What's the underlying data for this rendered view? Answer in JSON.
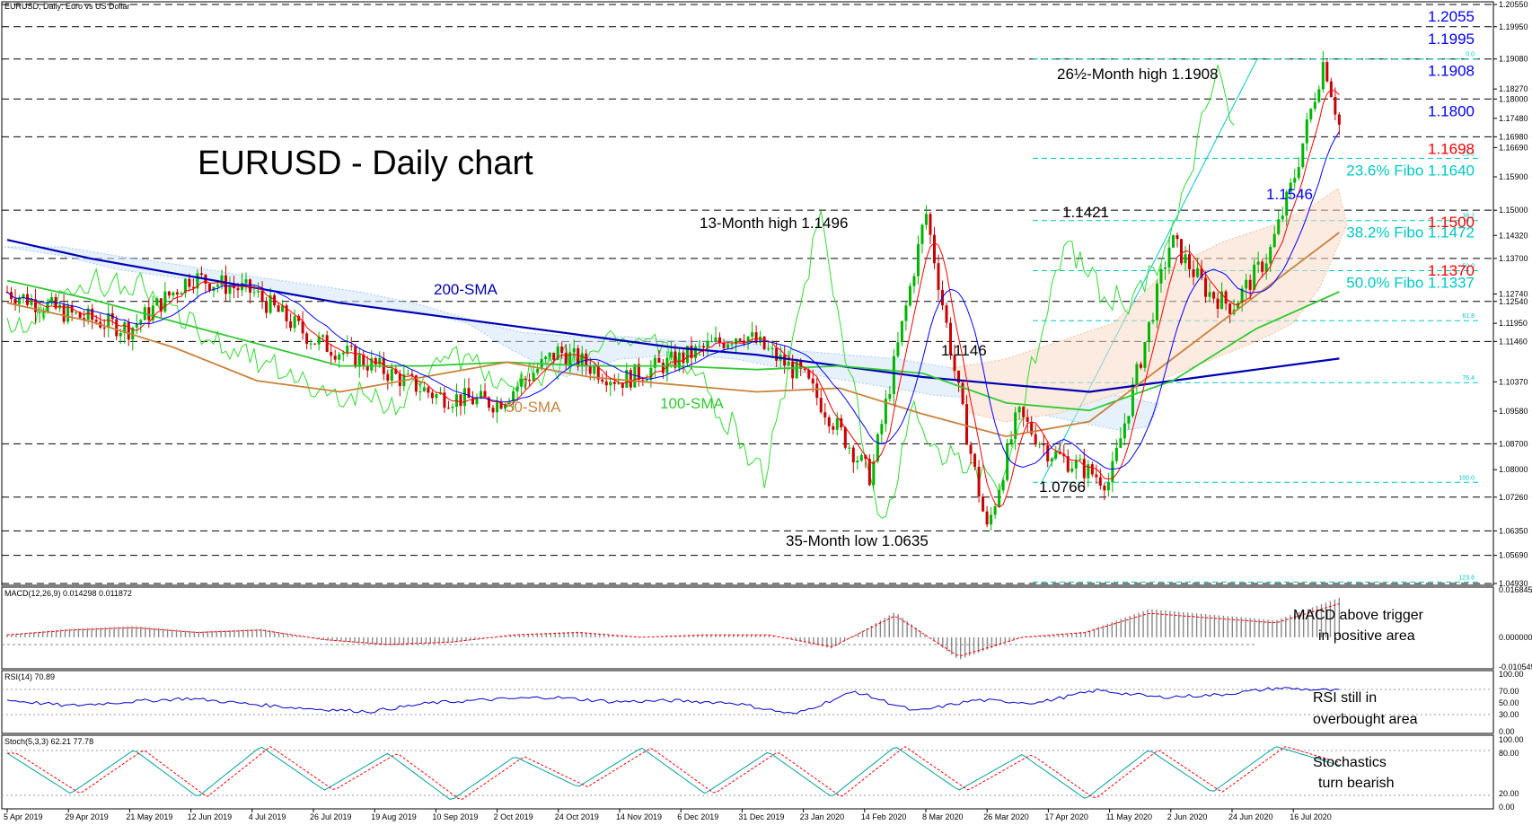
{
  "chart_data": [
    {
      "panel": "price",
      "type": "candlestick",
      "window_title": "EURUSD, Daily:  Euro vs US Dollar",
      "title": "EURUSD - Daily chart",
      "x_labels": [
        "5 Apr 2019",
        "29 Apr 2019",
        "21 May 2019",
        "12 Jun 2019",
        "4 Jul 2019",
        "26 Jul 2019",
        "19 Aug 2019",
        "10 Sep 2019",
        "2 Oct 2019",
        "24 Oct 2019",
        "14 Nov 2019",
        "6 Dec 2019",
        "31 Dec 2019",
        "23 Jan 2020",
        "14 Feb 2020",
        "8 Mar 2020",
        "26 Mar 2020",
        "17 Apr 2020",
        "11 May 2020",
        "2 Jun 2020",
        "24 Jun 2020",
        "16 Jul 2020"
      ],
      "ylim": [
        1.0493,
        1.2055
      ],
      "y_ticks": [
        "1.20550",
        "1.19950",
        "1.19080",
        "1.18270",
        "1.18000",
        "1.17480",
        "1.16980",
        "1.16690",
        "1.15900",
        "1.15000",
        "1.14320",
        "1.13700",
        "1.12740",
        "1.12540",
        "1.11950",
        "1.11460",
        "1.10370",
        "1.09580",
        "1.08700",
        "1.08000",
        "1.07260",
        "1.06350",
        "1.05690",
        "1.04930"
      ],
      "horizontal_levels": [
        1.2055,
        1.1995,
        1.1908,
        1.18,
        1.1698,
        1.15,
        1.137,
        1.1254,
        1.1146,
        1.087,
        1.0726,
        1.0635,
        1.0569,
        1.0493
      ],
      "right_labels": [
        {
          "text": "1.2055",
          "value": 1.2055,
          "color": "#0000ff"
        },
        {
          "text": "1.1995",
          "value": 1.1995,
          "color": "#0000ff"
        },
        {
          "text": "1.1908",
          "value": 1.1908,
          "color": "#0000ff"
        },
        {
          "text": "1.1800",
          "value": 1.18,
          "color": "#0000ff"
        },
        {
          "text": "1.1698",
          "value": 1.1698,
          "color": "#ff0000"
        },
        {
          "text": "1.1500",
          "value": 1.15,
          "color": "#ff0000"
        },
        {
          "text": "1.1370",
          "value": 1.137,
          "color": "#ff0000"
        }
      ],
      "fibonacci": {
        "color": "#00c8c8",
        "levels": [
          {
            "pct": "0.0",
            "value": 1.1908
          },
          {
            "pct": "23.6",
            "value": 1.164,
            "label": "23.6% Fibo 1.1640"
          },
          {
            "pct": "38.2",
            "value": 1.1472,
            "label": "38.2% Fibo 1.1472"
          },
          {
            "pct": "50.0",
            "value": 1.1337,
            "label": "50.0% Fibo 1.1337"
          },
          {
            "pct": "61.8",
            "value": 1.1202
          },
          {
            "pct": "76.4",
            "value": 1.1035
          },
          {
            "pct": "100.0",
            "value": 1.0766
          },
          {
            "pct": "123.6",
            "value": 1.0497
          }
        ]
      },
      "annotations": [
        {
          "text": "26½-Month high 1.1908",
          "value": 1.1908
        },
        {
          "text": "13-Month high 1.1496",
          "value": 1.1496
        },
        {
          "text": "1.1421",
          "value": 1.1421
        },
        {
          "text": "1.1146",
          "value": 1.1146
        },
        {
          "text": "1.0766",
          "value": 1.0766
        },
        {
          "text": "35-Month low 1.0635",
          "value": 1.0635
        },
        {
          "text": "1.1546",
          "value": 1.1546,
          "color": "#0000ff"
        }
      ],
      "series": [
        {
          "name": "200-SMA",
          "color": "#0000b4",
          "values": [
            1.142,
            1.137,
            1.133,
            1.129,
            1.125,
            1.122,
            1.119,
            1.116,
            1.113,
            1.111,
            1.108,
            1.105,
            1.103,
            1.101,
            1.104,
            1.107,
            1.11
          ]
        },
        {
          "name": "100-SMA",
          "color": "#32c832",
          "values": [
            1.131,
            1.126,
            1.12,
            1.114,
            1.108,
            1.108,
            1.109,
            1.108,
            1.108,
            1.107,
            1.108,
            1.106,
            1.098,
            1.096,
            1.104,
            1.118,
            1.128
          ]
        },
        {
          "name": "50-SMA",
          "color": "#c8823c",
          "values": [
            1.125,
            1.12,
            1.113,
            1.104,
            1.101,
            1.105,
            1.109,
            1.105,
            1.103,
            1.101,
            1.102,
            1.095,
            1.089,
            1.093,
            1.11,
            1.127,
            1.144
          ]
        }
      ],
      "key_points": [
        {
          "date": "14 Feb 2020",
          "value": 1.078
        },
        {
          "date": "8 Mar 2020",
          "value": 1.1496
        },
        {
          "date": "26 Mar 2020",
          "value": 1.0635
        },
        {
          "date": "11 May 2020",
          "value": 1.0766
        },
        {
          "date": "2 Jun 2020",
          "value": 1.1421
        },
        {
          "date": "16 Jul 2020",
          "value": 1.1908
        }
      ]
    },
    {
      "panel": "macd",
      "type": "histogram",
      "label": "MACD(12,26,9) 0.014298 0.011872",
      "ylim": [
        -0.010549,
        0.016845
      ],
      "y_ticks": [
        "0.016845",
        "0.000000",
        "-0.010549"
      ],
      "note": [
        "MACD above trigger",
        "in positive area"
      ],
      "values": [
        0.001,
        0.003,
        0.004,
        0.002,
        0.003,
        -0.001,
        -0.003,
        -0.002,
        0.001,
        0.002,
        0.0,
        0.001,
        0.001,
        -0.004,
        0.009,
        -0.008,
        0.0,
        0.002,
        0.01,
        0.008,
        0.006,
        0.014
      ]
    },
    {
      "panel": "rsi",
      "type": "line",
      "label": "RSI(14) 70.89",
      "ylim": [
        0,
        100
      ],
      "y_ticks": [
        "100.00",
        "70.00",
        "50.00",
        "30.00",
        "0.00"
      ],
      "note": [
        "RSI still in",
        "overbought area"
      ],
      "values": [
        55,
        45,
        52,
        58,
        48,
        40,
        35,
        50,
        56,
        60,
        52,
        54,
        50,
        30,
        70,
        35,
        55,
        50,
        72,
        60,
        64,
        76,
        71
      ]
    },
    {
      "panel": "stoch",
      "type": "line",
      "label": "Stoch(5,3,3) 62.21 77.78",
      "ylim": [
        0,
        100
      ],
      "y_ticks": [
        "100.00",
        "80.00",
        "20.00",
        "0.00"
      ],
      "note": [
        "Stochastics",
        "turn bearish"
      ],
      "values": [
        80,
        20,
        85,
        15,
        90,
        25,
        80,
        10,
        75,
        30,
        88,
        20,
        82,
        15,
        90,
        25,
        78,
        12,
        85,
        22,
        90,
        62
      ]
    }
  ],
  "legend_labels": {
    "sma200": "200-SMA",
    "sma100": "100-SMA",
    "sma50": "50-SMA"
  },
  "colors": {
    "sma200": "#0000b4",
    "sma100": "#32c832",
    "sma50": "#c8823c",
    "tenkan": "#ff0000",
    "kijun": "#0000ff",
    "fibo": "#00c8c8",
    "bull": "#00b400",
    "bear": "#c80000"
  }
}
